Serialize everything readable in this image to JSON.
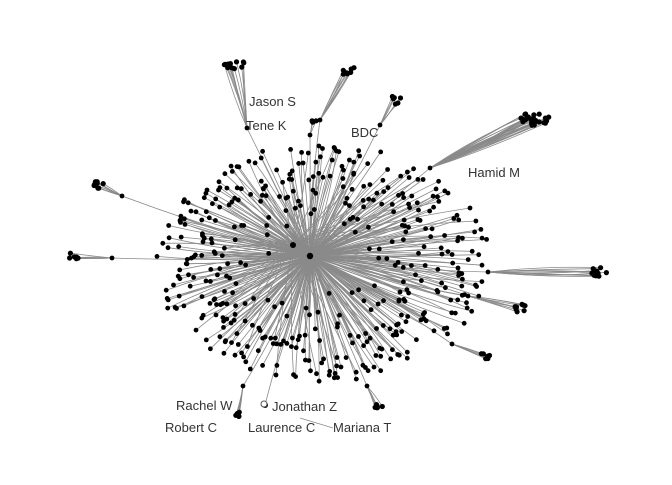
{
  "graph": {
    "type": "network",
    "layout": "radial hub-and-spoke",
    "edge_color": "#8a8a8a",
    "node_color": "#000000",
    "label_color": "#333333",
    "background": "#ffffff",
    "labels": [
      {
        "id": "jason-s",
        "text": "Jason S"
      },
      {
        "id": "tene-k",
        "text": "Tene K"
      },
      {
        "id": "bdc",
        "text": "BDC"
      },
      {
        "id": "hamid-m",
        "text": "Hamid M"
      },
      {
        "id": "rachel-w",
        "text": "Rachel W"
      },
      {
        "id": "jonathan-z",
        "text": "Jonathan Z"
      },
      {
        "id": "robert-c",
        "text": "Robert C"
      },
      {
        "id": "laurence-c",
        "text": "Laurence C"
      },
      {
        "id": "mariana-t",
        "text": "Mariana T"
      }
    ]
  }
}
